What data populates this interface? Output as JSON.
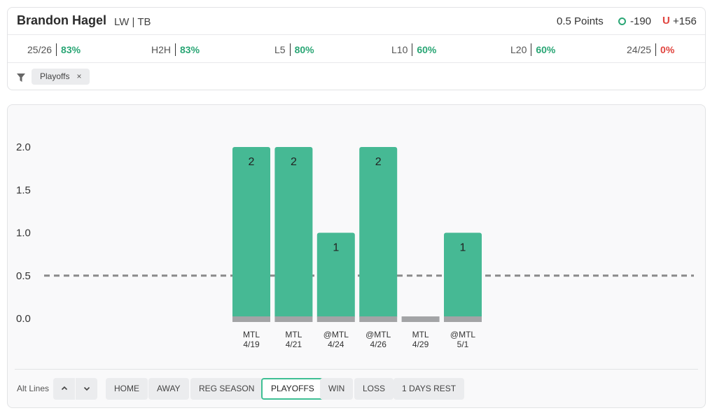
{
  "header": {
    "player_name": "Brandon Hagel",
    "player_meta": "LW | TB",
    "prop_line": "0.5 Points",
    "over_symbol": "O",
    "over_odds": "-190",
    "under_symbol": "U",
    "under_odds": "+156"
  },
  "stats": [
    {
      "label": "25/26",
      "value": "83%",
      "status": "good"
    },
    {
      "label": "H2H",
      "value": "83%",
      "status": "good"
    },
    {
      "label": "L5",
      "value": "80%",
      "status": "good"
    },
    {
      "label": "L10",
      "value": "60%",
      "status": "good"
    },
    {
      "label": "L20",
      "value": "60%",
      "status": "good"
    },
    {
      "label": "24/25",
      "value": "0%",
      "status": "bad"
    }
  ],
  "filter": {
    "icon": "filter-icon",
    "chip_label": "Playoffs",
    "chip_close": "×"
  },
  "colors": {
    "bar": "#46b994",
    "bar_base": "#a3a4a6",
    "line": "#8a8a8a",
    "good": "#2aa675",
    "bad": "#e0443e",
    "active_outline": "#3fbf94"
  },
  "chart_data": {
    "type": "bar",
    "categories": [
      "MTL 4/19",
      "MTL 4/21",
      "@MTL 4/24",
      "@MTL 4/26",
      "MTL 4/29",
      "@MTL 5/1"
    ],
    "category_lines": [
      [
        "MTL",
        "4/19"
      ],
      [
        "MTL",
        "4/21"
      ],
      [
        "@MTL",
        "4/24"
      ],
      [
        "@MTL",
        "4/26"
      ],
      [
        "MTL",
        "4/29"
      ],
      [
        "@MTL",
        "5/1"
      ]
    ],
    "values": [
      2,
      2,
      1,
      2,
      0,
      1
    ],
    "data_labels": [
      "2",
      "2",
      "1",
      "2",
      "",
      "1"
    ],
    "ylim": [
      0,
      2
    ],
    "yticks": [
      "0.0",
      "0.5",
      "1.0",
      "1.5",
      "2.0"
    ],
    "ytick_values": [
      0,
      0.5,
      1,
      1.5,
      2
    ],
    "reference_line": 0.5,
    "title": "",
    "xlabel": "",
    "ylabel": ""
  },
  "controls": {
    "alt_lines_label": "Alt Lines",
    "up_icon": "chevron-up-icon",
    "down_icon": "chevron-down-icon",
    "filters": [
      {
        "label": "HOME",
        "active": false
      },
      {
        "label": "AWAY",
        "active": false
      },
      {
        "label": "REG SEASON",
        "active": false
      },
      {
        "label": "PLAYOFFS",
        "active": true
      },
      {
        "label": "WIN",
        "active": false
      },
      {
        "label": "LOSS",
        "active": false
      },
      {
        "label": "1 DAYS REST",
        "active": false
      }
    ]
  }
}
